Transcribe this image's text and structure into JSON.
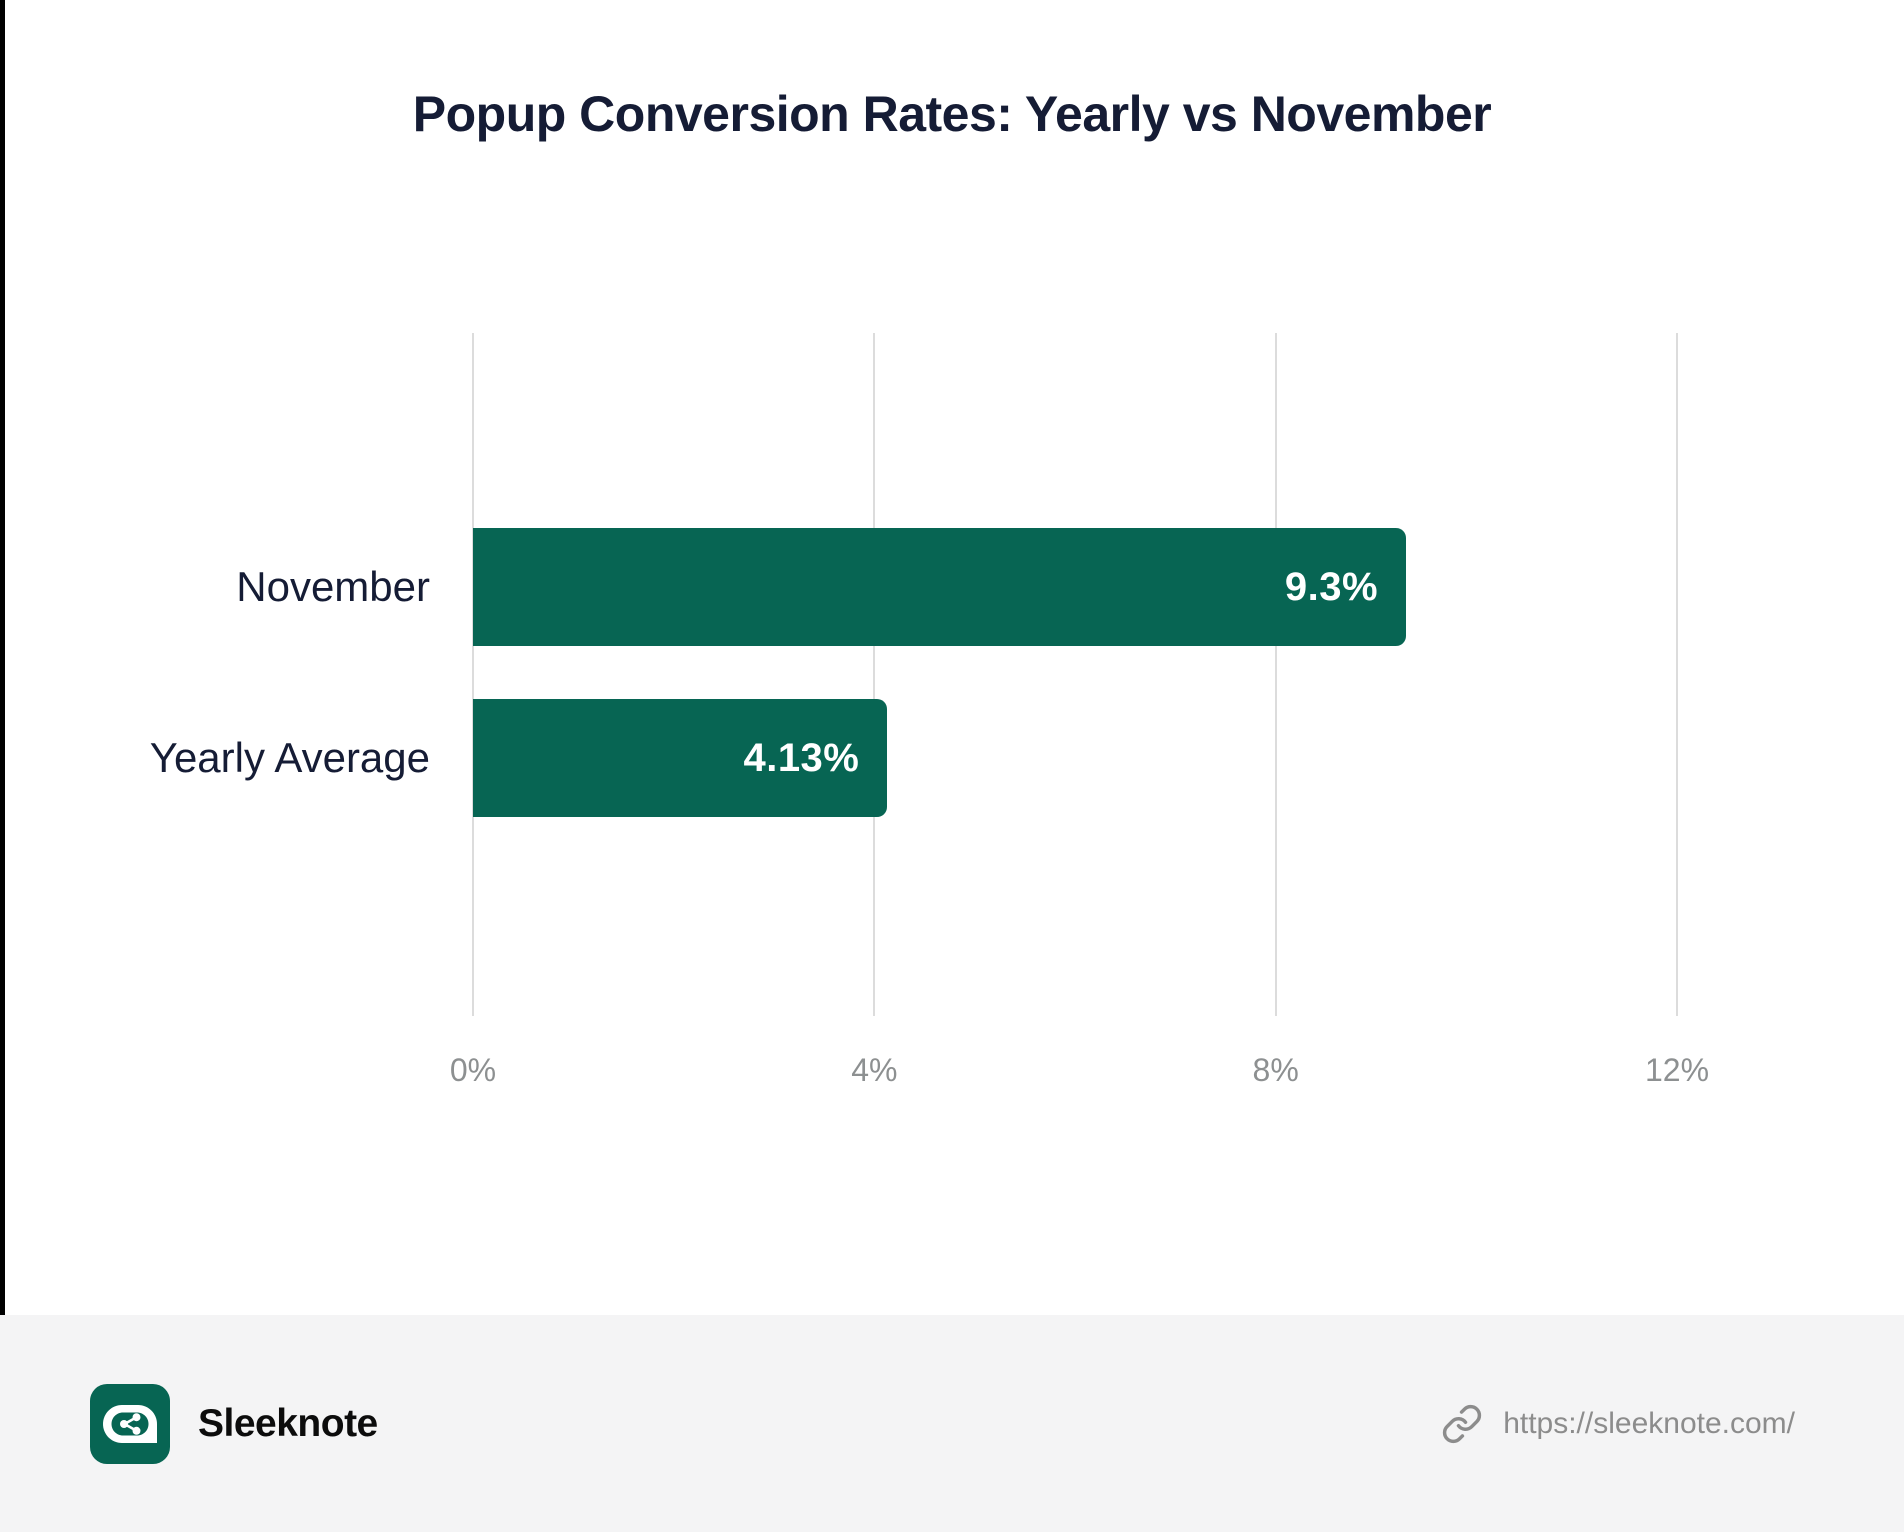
{
  "chart_data": {
    "type": "bar",
    "orientation": "horizontal",
    "title": "Popup Conversion Rates: Yearly vs November",
    "categories": [
      "November",
      "Yearly Average"
    ],
    "values": [
      9.3,
      4.13
    ],
    "value_labels": [
      "9.3%",
      "4.13%"
    ],
    "xlim": [
      0,
      12
    ],
    "xticks": [
      0,
      4,
      8,
      12
    ],
    "xtick_labels": [
      "0%",
      "4%",
      "8%",
      "12%"
    ],
    "grid": "vertical-gridlines-only",
    "legend": "none",
    "bar_color": "#076553",
    "value_label_color": "#ffffff",
    "category_label_color": "#151c35",
    "tick_label_color": "#8d9091",
    "gridline_color": "#dcdcdc"
  },
  "footer": {
    "brand_name": "Sleeknote",
    "url": "https://sleeknote.com/",
    "logo_icon": "sleeknote-speech-bubble-share-logo",
    "link_icon": "chain-link-icon",
    "background_color": "#f4f4f5",
    "brand_green": "#076553"
  }
}
